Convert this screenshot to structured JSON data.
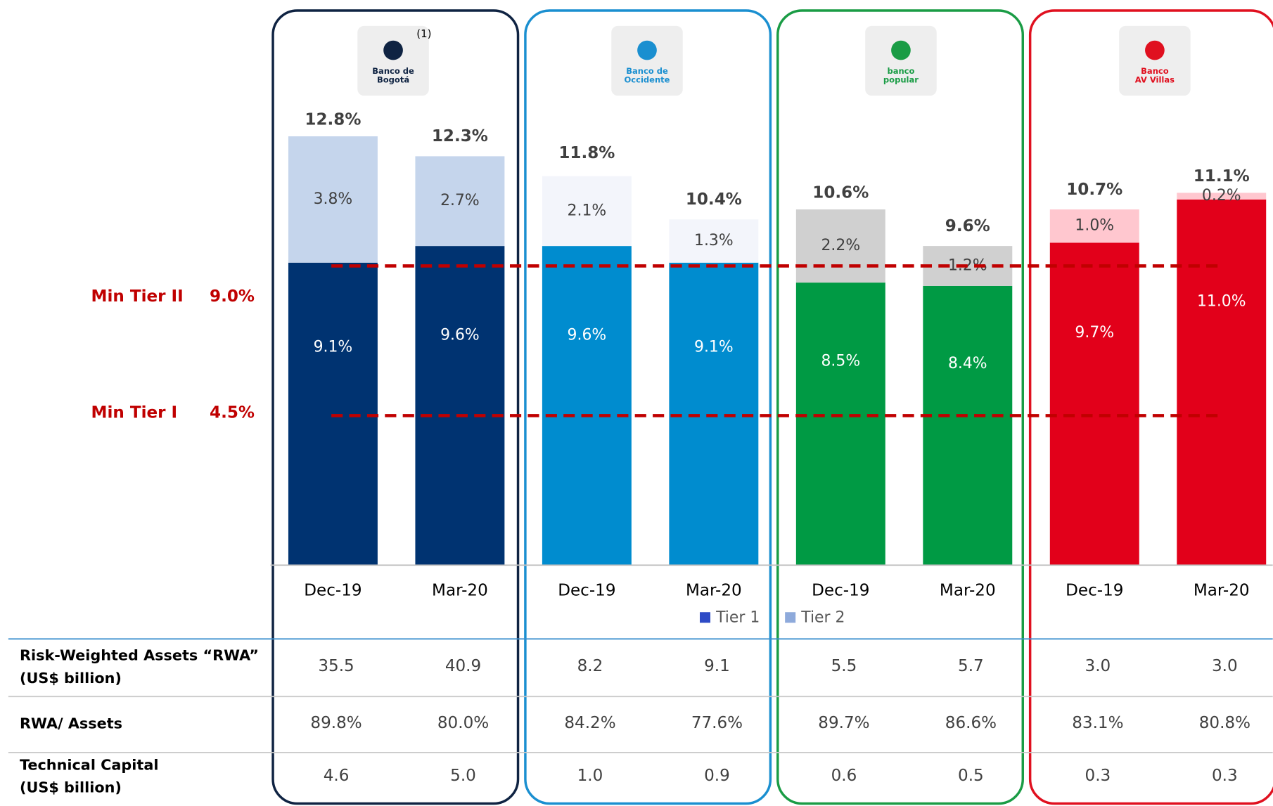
{
  "chart_data": {
    "type": "stacked_bar",
    "groups": [
      {
        "logo_text": [
          "Banco de",
          "Bogotá"
        ],
        "note": "(1)",
        "frame_color": "#0f2342"
      },
      {
        "logo_text": [
          "Banco de",
          "Occidente"
        ],
        "frame_color": "#1a8fd0"
      },
      {
        "logo_text": [
          "banco",
          "popular"
        ],
        "frame_color": "#1a9c45"
      },
      {
        "logo_text": [
          "Banco",
          "AV Villas"
        ],
        "frame_color": "#e0101f"
      }
    ],
    "categories": [
      "Dec-19",
      "Mar-20",
      "Dec-19",
      "Mar-20",
      "Dec-19",
      "Mar-20",
      "Dec-19",
      "Mar-20"
    ],
    "series": [
      {
        "name": "Tier 1",
        "color": "#2e4bc6",
        "values": [
          9.1,
          9.6,
          9.6,
          9.1,
          8.5,
          8.4,
          9.7,
          11.0
        ],
        "value_labels": [
          "9.1%",
          "9.6%",
          "9.6%",
          "9.1%",
          "8.5%",
          "8.4%",
          "9.7%",
          "11.0%"
        ],
        "bar_colors": [
          "#003371",
          "#003371",
          "#008ccf",
          "#008ccf",
          "#009a44",
          "#009a44",
          "#e2001a",
          "#e2001a"
        ]
      },
      {
        "name": "Tier 2",
        "color": "#8eaadb",
        "values": [
          3.8,
          2.7,
          2.1,
          1.3,
          2.2,
          1.2,
          1.0,
          0.2
        ],
        "value_labels": [
          "3.8%",
          "2.7%",
          "2.1%",
          "1.3%",
          "2.2%",
          "1.2%",
          "1.0%",
          "0.2%"
        ],
        "bar_colors": [
          "#c5d5ec",
          "#c5d5ec",
          "#f3f5fb",
          "#f3f5fb",
          "#d0d0d0",
          "#d0d0d0",
          "#ffc7cf",
          "#ffc7cf"
        ]
      }
    ],
    "totals": [
      12.8,
      12.3,
      11.8,
      10.4,
      10.6,
      9.6,
      10.7,
      11.1
    ],
    "total_labels": [
      "12.8%",
      "12.3%",
      "11.8%",
      "10.4%",
      "10.6%",
      "9.6%",
      "10.7%",
      "11.1%"
    ],
    "reference_lines": [
      {
        "label": "Min Tier II",
        "value": 9.0,
        "value_label": "9.0%",
        "color": "#c00000"
      },
      {
        "label": "Min Tier I",
        "value": 4.5,
        "value_label": "4.5%",
        "color": "#c00000"
      }
    ],
    "ylim": [
      0,
      17
    ]
  },
  "table": {
    "rows": [
      {
        "label": [
          "Risk-Weighted Assets “RWA”",
          "(US$ billion)"
        ],
        "values": [
          "35.5",
          "40.9",
          "8.2",
          "9.1",
          "5.5",
          "5.7",
          "3.0",
          "3.0"
        ]
      },
      {
        "label": [
          "RWA/ Assets"
        ],
        "values": [
          "89.8%",
          "80.0%",
          "84.2%",
          "77.6%",
          "89.7%",
          "86.6%",
          "83.1%",
          "80.8%"
        ]
      },
      {
        "label": [
          "Technical Capital",
          "(US$ billion)"
        ],
        "values": [
          "4.6",
          "5.0",
          "1.0",
          "0.9",
          "0.6",
          "0.5",
          "0.3",
          "0.3"
        ]
      }
    ]
  }
}
